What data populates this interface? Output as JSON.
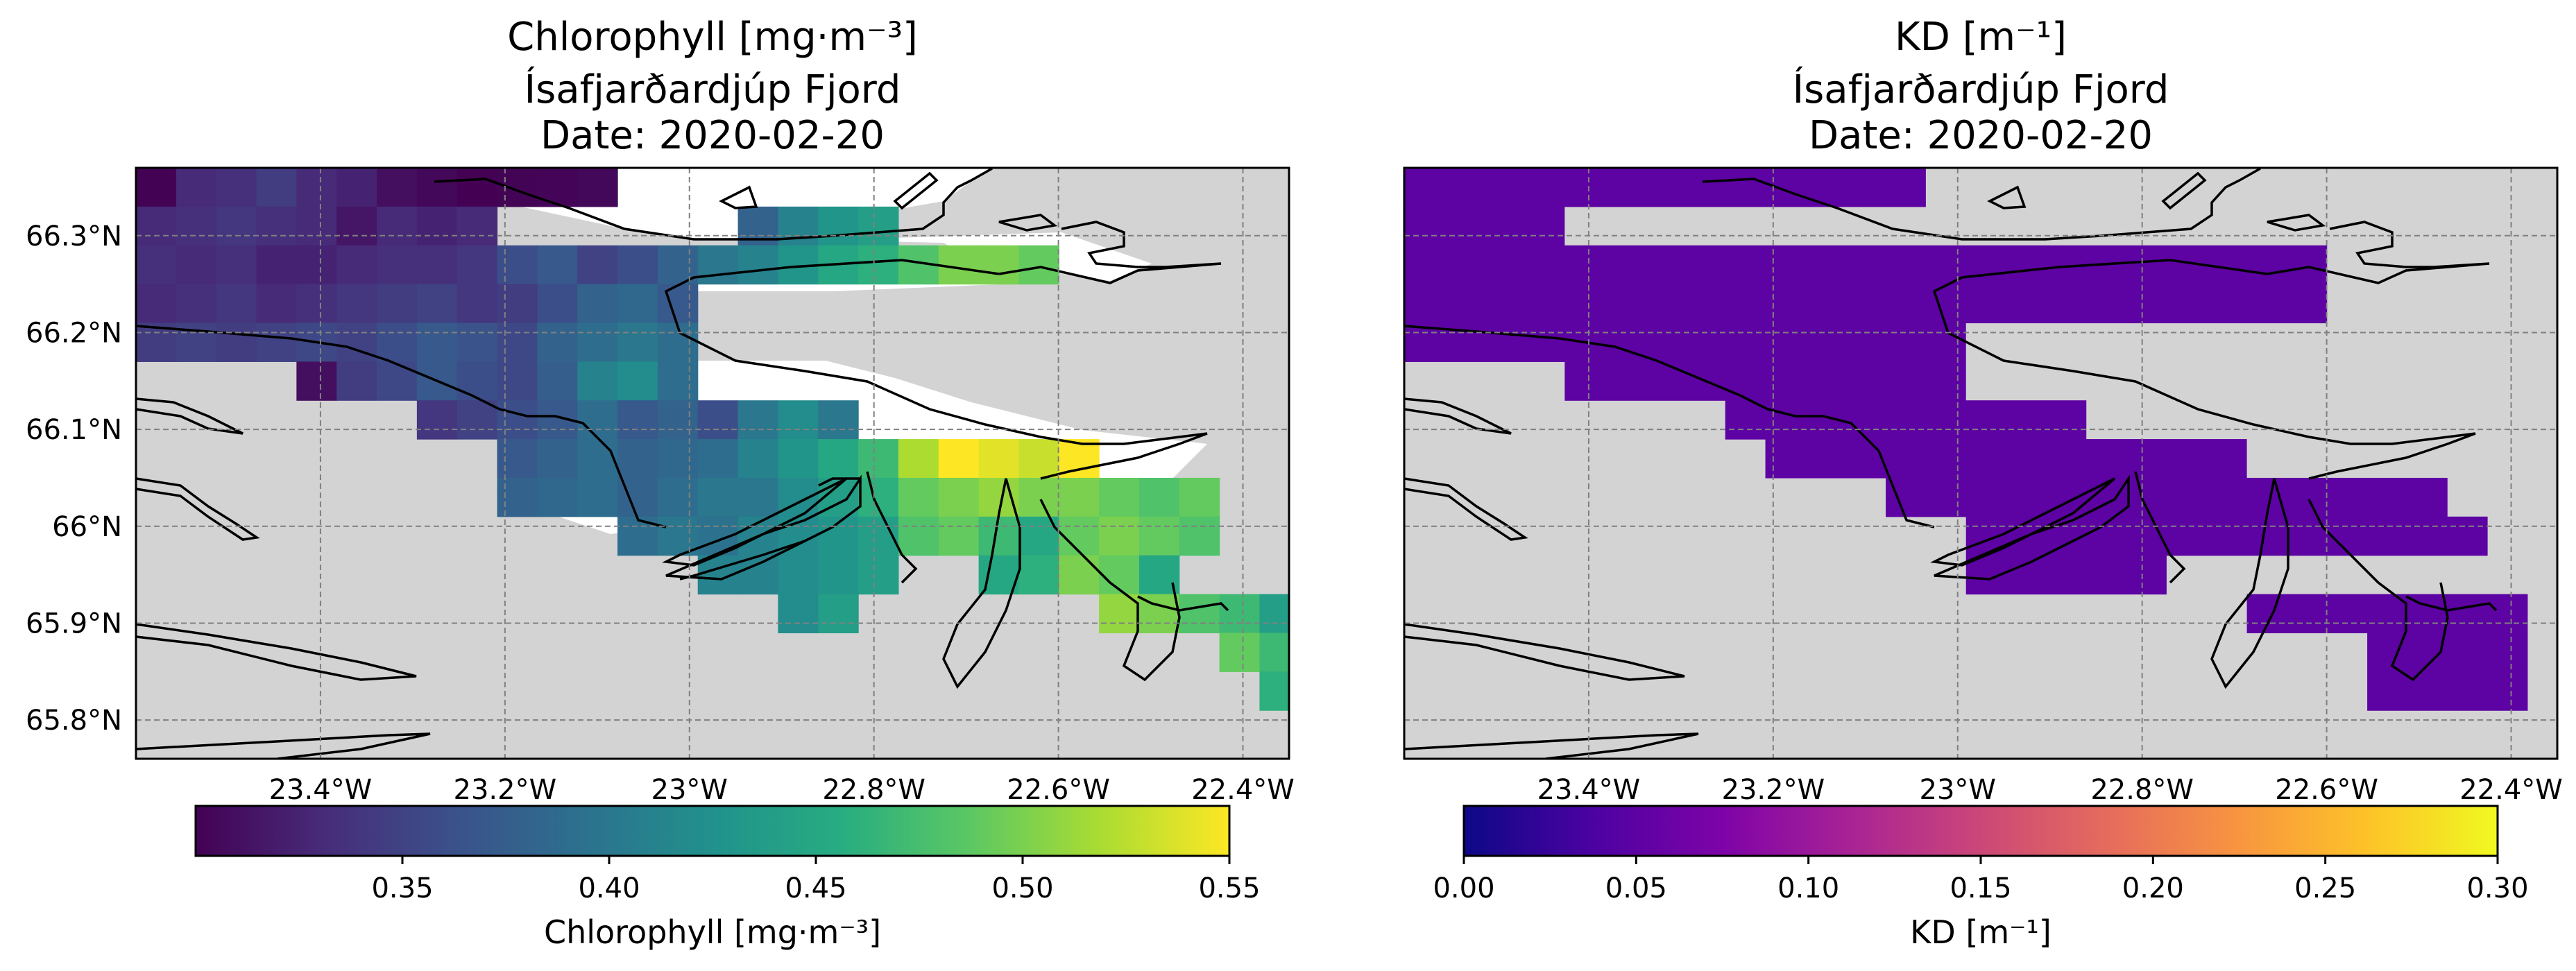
{
  "chart_data": [
    {
      "type": "heatmap",
      "title": [
        "Chlorophyll [mg·m⁻³]",
        "Ísafjarðardjúp Fjord",
        "Date: 2020-02-20"
      ],
      "x_ticks": [
        "23.4°W",
        "23.2°W",
        "23°W",
        "22.8°W",
        "22.6°W",
        "22.4°W"
      ],
      "y_ticks": [
        "66.3°N",
        "66.2°N",
        "66.1°N",
        "66°N",
        "65.9°N",
        "65.8°N"
      ],
      "x_tick_values": [
        -23.4,
        -23.2,
        -23.0,
        -22.8,
        -22.6,
        -22.4
      ],
      "y_tick_values": [
        66.3,
        66.2,
        66.1,
        66.0,
        65.9,
        65.8
      ],
      "xlim": [
        -23.6,
        -22.35
      ],
      "ylim": [
        65.76,
        66.37
      ],
      "grid": true,
      "land_color": "#d3d3d3",
      "colormap": "viridis",
      "colorbar": {
        "label": "Chlorophyll [mg·m⁻³]",
        "ticks": [
          "0.35",
          "0.40",
          "0.45",
          "0.50",
          "0.55"
        ],
        "tick_values": [
          0.35,
          0.4,
          0.45,
          0.5,
          0.55
        ],
        "range": [
          0.3,
          0.55
        ]
      },
      "cell_size_deg": {
        "dlon": 0.0435,
        "dlat": 0.04
      },
      "cell_origin": {
        "lon": -23.6,
        "lat": 66.37
      },
      "cells": [
        [
          0,
          0,
          0.301
        ],
        [
          1,
          0,
          0.33
        ],
        [
          2,
          0,
          0.335
        ],
        [
          3,
          0,
          0.345
        ],
        [
          4,
          0,
          0.33
        ],
        [
          5,
          0,
          0.325
        ],
        [
          6,
          0,
          0.31
        ],
        [
          7,
          0,
          0.305
        ],
        [
          8,
          0,
          0.3
        ],
        [
          9,
          0,
          0.302
        ],
        [
          10,
          0,
          0.303
        ],
        [
          11,
          0,
          0.305
        ],
        [
          0,
          1,
          0.33
        ],
        [
          1,
          1,
          0.335
        ],
        [
          2,
          1,
          0.34
        ],
        [
          3,
          1,
          0.335
        ],
        [
          4,
          1,
          0.33
        ],
        [
          5,
          1,
          0.315
        ],
        [
          6,
          1,
          0.33
        ],
        [
          7,
          1,
          0.325
        ],
        [
          8,
          1,
          0.33
        ],
        [
          15,
          1,
          0.38
        ],
        [
          16,
          1,
          0.41
        ],
        [
          17,
          1,
          0.43
        ],
        [
          18,
          1,
          0.44
        ],
        [
          0,
          2,
          0.335
        ],
        [
          1,
          2,
          0.33
        ],
        [
          2,
          2,
          0.335
        ],
        [
          3,
          2,
          0.325
        ],
        [
          4,
          2,
          0.325
        ],
        [
          5,
          2,
          0.33
        ],
        [
          6,
          2,
          0.335
        ],
        [
          7,
          2,
          0.335
        ],
        [
          8,
          2,
          0.34
        ],
        [
          9,
          2,
          0.36
        ],
        [
          10,
          2,
          0.37
        ],
        [
          11,
          2,
          0.35
        ],
        [
          12,
          2,
          0.36
        ],
        [
          13,
          2,
          0.38
        ],
        [
          14,
          2,
          0.4
        ],
        [
          15,
          2,
          0.41
        ],
        [
          16,
          2,
          0.43
        ],
        [
          17,
          2,
          0.45
        ],
        [
          18,
          2,
          0.46
        ],
        [
          19,
          2,
          0.48
        ],
        [
          20,
          2,
          0.5
        ],
        [
          21,
          2,
          0.5
        ],
        [
          22,
          2,
          0.49
        ],
        [
          0,
          3,
          0.33
        ],
        [
          1,
          3,
          0.335
        ],
        [
          2,
          3,
          0.34
        ],
        [
          3,
          3,
          0.33
        ],
        [
          4,
          3,
          0.335
        ],
        [
          5,
          3,
          0.34
        ],
        [
          6,
          3,
          0.345
        ],
        [
          7,
          3,
          0.35
        ],
        [
          8,
          3,
          0.34
        ],
        [
          9,
          3,
          0.345
        ],
        [
          10,
          3,
          0.36
        ],
        [
          11,
          3,
          0.38
        ],
        [
          12,
          3,
          0.385
        ],
        [
          13,
          3,
          0.37
        ],
        [
          0,
          4,
          0.345
        ],
        [
          1,
          4,
          0.35
        ],
        [
          2,
          4,
          0.345
        ],
        [
          3,
          4,
          0.35
        ],
        [
          4,
          4,
          0.355
        ],
        [
          5,
          4,
          0.35
        ],
        [
          6,
          4,
          0.36
        ],
        [
          7,
          4,
          0.37
        ],
        [
          8,
          4,
          0.365
        ],
        [
          9,
          4,
          0.355
        ],
        [
          10,
          4,
          0.38
        ],
        [
          11,
          4,
          0.39
        ],
        [
          12,
          4,
          0.4
        ],
        [
          13,
          4,
          0.39
        ],
        [
          4,
          5,
          0.31
        ],
        [
          5,
          5,
          0.345
        ],
        [
          6,
          5,
          0.355
        ],
        [
          7,
          5,
          0.37
        ],
        [
          8,
          5,
          0.36
        ],
        [
          9,
          5,
          0.355
        ],
        [
          10,
          5,
          0.375
        ],
        [
          11,
          5,
          0.41
        ],
        [
          12,
          5,
          0.42
        ],
        [
          13,
          5,
          0.39
        ],
        [
          7,
          6,
          0.34
        ],
        [
          8,
          6,
          0.35
        ],
        [
          9,
          6,
          0.36
        ],
        [
          10,
          6,
          0.37
        ],
        [
          11,
          6,
          0.39
        ],
        [
          12,
          6,
          0.37
        ],
        [
          13,
          6,
          0.38
        ],
        [
          14,
          6,
          0.36
        ],
        [
          15,
          6,
          0.4
        ],
        [
          16,
          6,
          0.42
        ],
        [
          17,
          6,
          0.4
        ],
        [
          9,
          7,
          0.37
        ],
        [
          10,
          7,
          0.38
        ],
        [
          11,
          7,
          0.39
        ],
        [
          12,
          7,
          0.38
        ],
        [
          13,
          7,
          0.385
        ],
        [
          14,
          7,
          0.39
        ],
        [
          15,
          7,
          0.41
        ],
        [
          16,
          7,
          0.43
        ],
        [
          17,
          7,
          0.45
        ],
        [
          18,
          7,
          0.47
        ],
        [
          19,
          7,
          0.52
        ],
        [
          20,
          7,
          0.55
        ],
        [
          21,
          7,
          0.54
        ],
        [
          22,
          7,
          0.53
        ],
        [
          23,
          7,
          0.55
        ],
        [
          9,
          8,
          0.38
        ],
        [
          10,
          8,
          0.385
        ],
        [
          11,
          8,
          0.39
        ],
        [
          12,
          8,
          0.38
        ],
        [
          13,
          8,
          0.39
        ],
        [
          14,
          8,
          0.4
        ],
        [
          15,
          8,
          0.4
        ],
        [
          16,
          8,
          0.42
        ],
        [
          17,
          8,
          0.44
        ],
        [
          18,
          8,
          0.46
        ],
        [
          19,
          8,
          0.49
        ],
        [
          20,
          8,
          0.5
        ],
        [
          21,
          8,
          0.51
        ],
        [
          22,
          8,
          0.5
        ],
        [
          23,
          8,
          0.5
        ],
        [
          24,
          8,
          0.49
        ],
        [
          25,
          8,
          0.48
        ],
        [
          26,
          8,
          0.49
        ],
        [
          12,
          9,
          0.39
        ],
        [
          13,
          9,
          0.4
        ],
        [
          14,
          9,
          0.395
        ],
        [
          15,
          9,
          0.41
        ],
        [
          16,
          9,
          0.42
        ],
        [
          17,
          9,
          0.43
        ],
        [
          18,
          9,
          0.44
        ],
        [
          19,
          9,
          0.48
        ],
        [
          20,
          9,
          0.49
        ],
        [
          21,
          9,
          0.47
        ],
        [
          22,
          9,
          0.45
        ],
        [
          23,
          9,
          0.49
        ],
        [
          24,
          9,
          0.5
        ],
        [
          25,
          9,
          0.49
        ],
        [
          26,
          9,
          0.48
        ],
        [
          14,
          10,
          0.41
        ],
        [
          15,
          10,
          0.41
        ],
        [
          16,
          10,
          0.42
        ],
        [
          17,
          10,
          0.43
        ],
        [
          18,
          10,
          0.44
        ],
        [
          21,
          10,
          0.45
        ],
        [
          22,
          10,
          0.46
        ],
        [
          23,
          10,
          0.5
        ],
        [
          24,
          10,
          0.49
        ],
        [
          25,
          10,
          0.45
        ],
        [
          16,
          11,
          0.42
        ],
        [
          17,
          11,
          0.44
        ],
        [
          24,
          11,
          0.51
        ],
        [
          25,
          11,
          0.5
        ],
        [
          26,
          11,
          0.48
        ],
        [
          27,
          11,
          0.47
        ],
        [
          28,
          11,
          0.44
        ],
        [
          29,
          11,
          0.43
        ],
        [
          27,
          12,
          0.49
        ],
        [
          28,
          12,
          0.47
        ],
        [
          29,
          12,
          0.44
        ],
        [
          28,
          13,
          0.46
        ],
        [
          29,
          13,
          0.43
        ]
      ]
    },
    {
      "type": "heatmap",
      "title": [
        "KD [m⁻¹]",
        "Ísafjarðardjúp Fjord",
        "Date: 2020-02-20"
      ],
      "x_ticks": [
        "23.4°W",
        "23.2°W",
        "23°W",
        "22.8°W",
        "22.6°W",
        "22.4°W"
      ],
      "x_tick_values": [
        -23.4,
        -23.2,
        -23.0,
        -22.8,
        -22.6,
        -22.4
      ],
      "xlim": [
        -23.6,
        -22.35
      ],
      "ylim": [
        65.76,
        66.37
      ],
      "grid": true,
      "land_color": "#d3d3d3",
      "colormap": "plasma",
      "colorbar": {
        "label": "KD [m⁻¹]",
        "ticks": [
          "0.00",
          "0.05",
          "0.10",
          "0.15",
          "0.20",
          "0.25",
          "0.30"
        ],
        "tick_values": [
          0.0,
          0.05,
          0.1,
          0.15,
          0.2,
          0.25,
          0.3
        ],
        "range": [
          0.0,
          0.3
        ]
      },
      "uniform_value": 0.05,
      "cell_size_deg": {
        "dlon": 0.0435,
        "dlat": 0.04
      },
      "cell_origin": {
        "lon": -23.6,
        "lat": 66.37
      },
      "mask_rows": [
        [
          0,
          12
        ],
        [
          0,
          3
        ],
        [
          0,
          22
        ],
        [
          0,
          22
        ],
        [
          0,
          13
        ],
        [
          4,
          13
        ],
        [
          8,
          16
        ],
        [
          9,
          20
        ],
        [
          12,
          25
        ],
        [
          14,
          26
        ],
        [
          14,
          18
        ],
        [
          21,
          27
        ],
        [
          24,
          27
        ],
        [
          24,
          27
        ]
      ]
    }
  ]
}
